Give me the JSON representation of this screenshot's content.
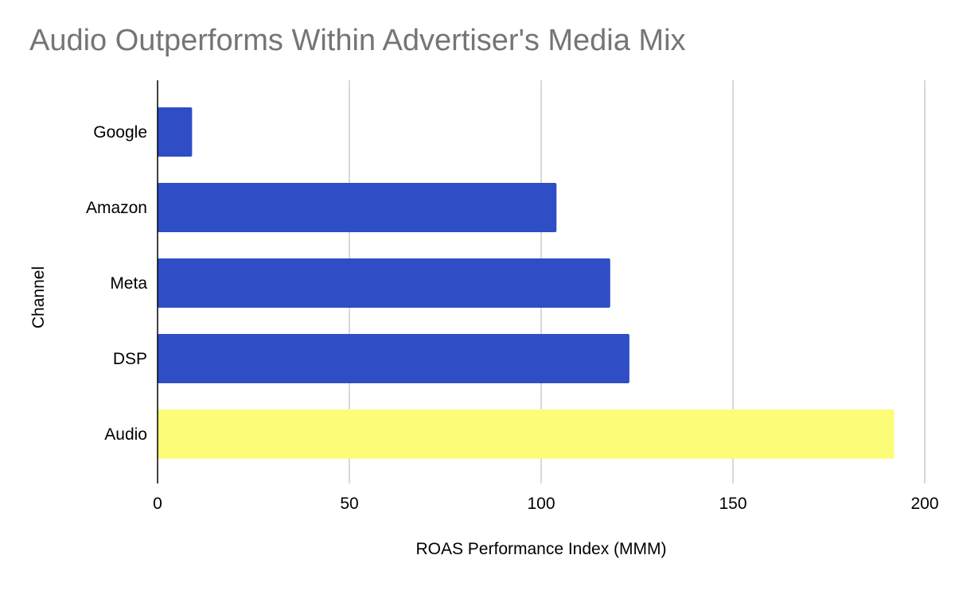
{
  "chart_data": {
    "type": "bar",
    "orientation": "horizontal",
    "title": "Audio Outperforms Within Advertiser's Media Mix",
    "xlabel": "ROAS Performance Index (MMM)",
    "ylabel": "Channel",
    "categories": [
      "Google",
      "Amazon",
      "Meta",
      "DSP",
      "Audio"
    ],
    "values": [
      9,
      104,
      118,
      123,
      192
    ],
    "bar_colors": [
      "#2f4dc5",
      "#2f4dc5",
      "#2f4dc5",
      "#2f4dc5",
      "#fdfc79"
    ],
    "xlim": [
      0,
      200
    ],
    "xticks": [
      0,
      50,
      100,
      150,
      200
    ],
    "grid": "vertical",
    "legend": "none"
  }
}
